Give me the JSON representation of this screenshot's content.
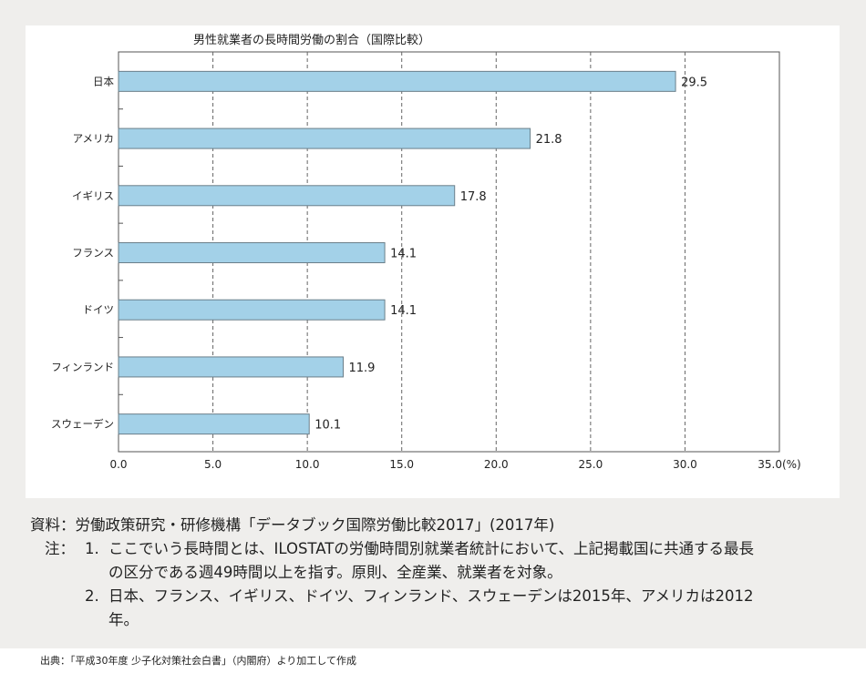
{
  "chart_data": {
    "type": "bar",
    "orientation": "horizontal",
    "title": "男性就業者の長時間労働の割合（国際比較）",
    "categories": [
      "日本",
      "アメリカ",
      "イギリス",
      "フランス",
      "ドイツ",
      "フィンランド",
      "スウェーデン"
    ],
    "values": [
      29.5,
      21.8,
      17.8,
      14.1,
      14.1,
      11.9,
      10.1
    ],
    "data_labels": [
      "29.5",
      "21.8",
      "17.8",
      "14.1",
      "14.1",
      "11.9",
      "10.1"
    ],
    "xlim": [
      0,
      35
    ],
    "xticks": [
      "0.0",
      "5.0",
      "10.0",
      "15.0",
      "20.0",
      "25.0",
      "30.0",
      "35.0"
    ],
    "xunit": "(%)",
    "grid": "vertical dashed",
    "bar_color": "#a3d1e8"
  },
  "notes": {
    "source": "資料：労働政策研究・研修機構「データブック国際労働比較2017」(2017年)",
    "note_label": "注：",
    "note1_num": "1.",
    "note1_line1": "ここでいう長時間とは、ILOSTATの労働時間別就業者統計において、上記掲載国に共通する最長",
    "note1_line2": "の区分である週49時間以上を指す。原則、全産業、就業者を対象。",
    "note2_num": "2.",
    "note2_line1": "日本、フランス、イギリス、ドイツ、フィンランド、スウェーデンは2015年、アメリカは2012",
    "note2_line2": "年。"
  },
  "credit": "出典：「平成30年度 少子化対策社会白書」（内閣府）より加工して作成"
}
